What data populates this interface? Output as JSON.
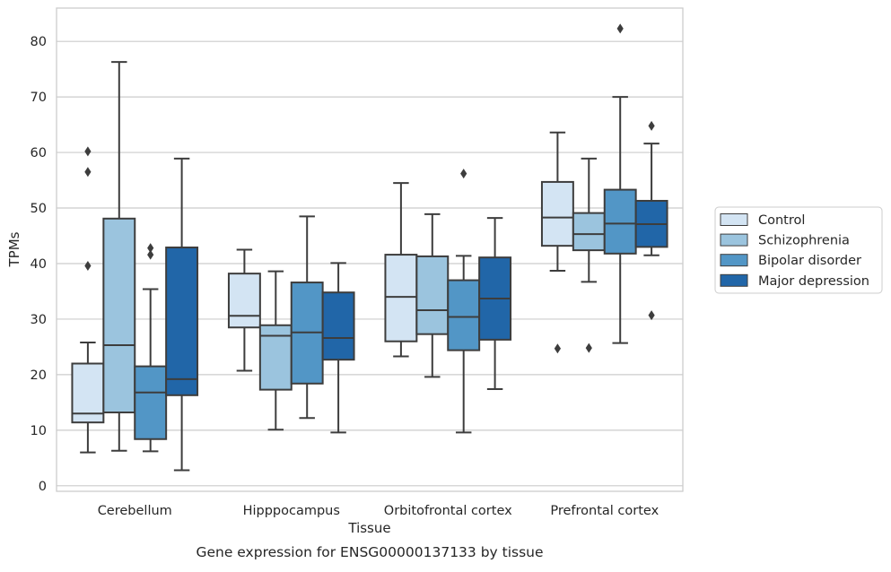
{
  "chart_data": {
    "type": "box",
    "caption": "Gene expression for ENSG00000137133 by tissue",
    "xlabel": "Tissue",
    "ylabel": "TPMs",
    "ylim": [
      -1,
      86
    ],
    "yticks": [
      0,
      10,
      20,
      30,
      40,
      50,
      60,
      70,
      80
    ],
    "grid": true,
    "legend_position": "right",
    "categories": [
      "Cerebellum",
      "Hipppocampus",
      "Orbitofrontal cortex",
      "Prefrontal cortex"
    ],
    "series": [
      {
        "name": "Control",
        "color": "#d3e4f3",
        "boxes": [
          {
            "whislo": 6.0,
            "q1": 11.4,
            "med": 13.0,
            "q3": 22.0,
            "whishi": 25.8,
            "fliers": [
              39.6,
              56.5,
              60.2
            ]
          },
          {
            "whislo": 20.7,
            "q1": 28.5,
            "med": 30.6,
            "q3": 38.2,
            "whishi": 42.5,
            "fliers": []
          },
          {
            "whislo": 23.3,
            "q1": 26.0,
            "med": 34.0,
            "q3": 41.6,
            "whishi": 54.5,
            "fliers": []
          },
          {
            "whislo": 38.7,
            "q1": 43.2,
            "med": 48.3,
            "q3": 54.7,
            "whishi": 63.6,
            "fliers": [
              24.7
            ]
          }
        ]
      },
      {
        "name": "Schizophrenia",
        "color": "#9bc4de",
        "boxes": [
          {
            "whislo": 6.3,
            "q1": 13.2,
            "med": 25.3,
            "q3": 48.1,
            "whishi": 76.3,
            "fliers": []
          },
          {
            "whislo": 10.1,
            "q1": 17.3,
            "med": 27.0,
            "q3": 28.9,
            "whishi": 38.6,
            "fliers": []
          },
          {
            "whislo": 19.6,
            "q1": 27.3,
            "med": 31.6,
            "q3": 41.3,
            "whishi": 48.9,
            "fliers": []
          },
          {
            "whislo": 36.7,
            "q1": 42.4,
            "med": 45.3,
            "q3": 49.1,
            "whishi": 58.9,
            "fliers": [
              24.8
            ]
          }
        ]
      },
      {
        "name": "Bipolar disorder",
        "color": "#5296c6",
        "boxes": [
          {
            "whislo": 6.2,
            "q1": 8.4,
            "med": 16.8,
            "q3": 21.5,
            "whishi": 35.4,
            "fliers": [
              41.6,
              42.8
            ]
          },
          {
            "whislo": 12.2,
            "q1": 18.4,
            "med": 27.6,
            "q3": 36.6,
            "whishi": 48.5,
            "fliers": []
          },
          {
            "whislo": 9.6,
            "q1": 24.4,
            "med": 30.4,
            "q3": 37.0,
            "whishi": 41.4,
            "fliers": [
              56.2
            ]
          },
          {
            "whislo": 25.7,
            "q1": 41.8,
            "med": 47.2,
            "q3": 53.3,
            "whishi": 70.0,
            "fliers": [
              82.3
            ]
          }
        ]
      },
      {
        "name": "Major depression",
        "color": "#2166a8",
        "boxes": [
          {
            "whislo": 2.8,
            "q1": 16.3,
            "med": 19.2,
            "q3": 42.9,
            "whishi": 58.9,
            "fliers": []
          },
          {
            "whislo": 9.6,
            "q1": 22.7,
            "med": 26.6,
            "q3": 34.8,
            "whishi": 40.1,
            "fliers": []
          },
          {
            "whislo": 17.4,
            "q1": 26.3,
            "med": 33.7,
            "q3": 41.1,
            "whishi": 48.2,
            "fliers": []
          },
          {
            "whislo": 41.5,
            "q1": 43.0,
            "med": 47.1,
            "q3": 51.3,
            "whishi": 61.6,
            "fliers": [
              30.7,
              64.8
            ]
          }
        ]
      }
    ]
  }
}
